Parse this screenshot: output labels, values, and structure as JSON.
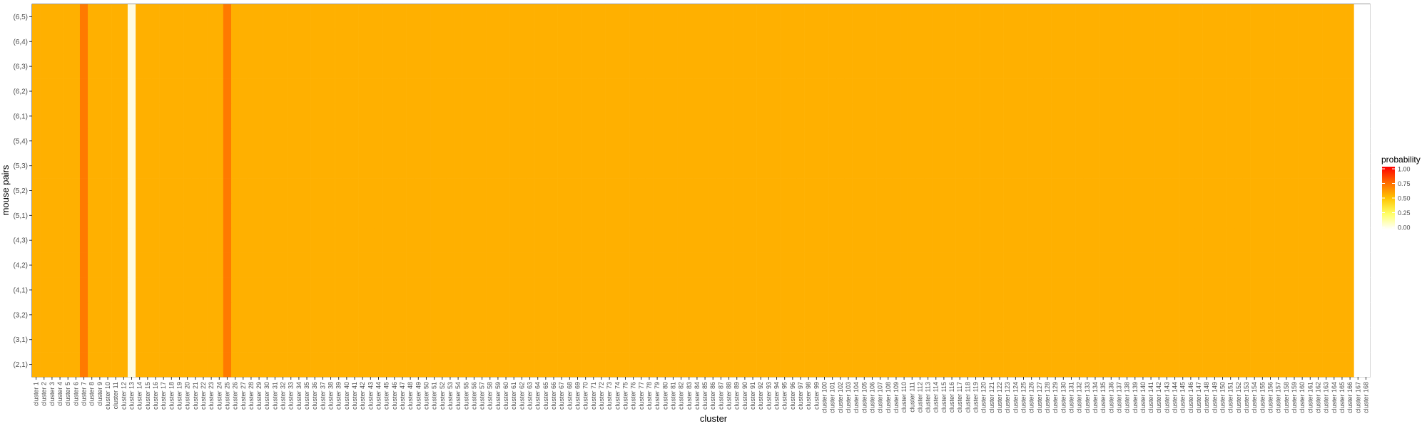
{
  "chart_data": {
    "type": "heatmap",
    "xlabel": "cluster",
    "ylabel": "mouse pairs",
    "y_categories": [
      "(2,1)",
      "(3,1)",
      "(3,2)",
      "(4,1)",
      "(4,2)",
      "(4,3)",
      "(5,1)",
      "(5,2)",
      "(5,3)",
      "(5,4)",
      "(6,1)",
      "(6,2)",
      "(6,3)",
      "(6,4)",
      "(6,5)"
    ],
    "x_categories": [
      "cluster 1",
      "cluster 2",
      "cluster 3",
      "cluster 4",
      "cluster 5",
      "cluster 6",
      "cluster 7",
      "cluster 8",
      "cluster 9",
      "cluster 10",
      "cluster 11",
      "cluster 12",
      "cluster 13",
      "cluster 14",
      "cluster 15",
      "cluster 16",
      "cluster 17",
      "cluster 18",
      "cluster 19",
      "cluster 20",
      "cluster 21",
      "cluster 22",
      "cluster 23",
      "cluster 24",
      "cluster 25",
      "cluster 26",
      "cluster 27",
      "cluster 28",
      "cluster 29",
      "cluster 30",
      "cluster 31",
      "cluster 32",
      "cluster 33",
      "cluster 34",
      "cluster 35",
      "cluster 36",
      "cluster 37",
      "cluster 38",
      "cluster 39",
      "cluster 40",
      "cluster 41",
      "cluster 42",
      "cluster 43",
      "cluster 44",
      "cluster 45",
      "cluster 46",
      "cluster 47",
      "cluster 48",
      "cluster 49",
      "cluster 50",
      "cluster 51",
      "cluster 52",
      "cluster 53",
      "cluster 54",
      "cluster 55",
      "cluster 56",
      "cluster 57",
      "cluster 58",
      "cluster 59",
      "cluster 60",
      "cluster 61",
      "cluster 62",
      "cluster 63",
      "cluster 64",
      "cluster 65",
      "cluster 66",
      "cluster 67",
      "cluster 68",
      "cluster 69",
      "cluster 70",
      "cluster 71",
      "cluster 72",
      "cluster 73",
      "cluster 74",
      "cluster 75",
      "cluster 76",
      "cluster 77",
      "cluster 78",
      "cluster 79",
      "cluster 80",
      "cluster 81",
      "cluster 82",
      "cluster 83",
      "cluster 84",
      "cluster 85",
      "cluster 86",
      "cluster 87",
      "cluster 88",
      "cluster 89",
      "cluster 90",
      "cluster 91",
      "cluster 92",
      "cluster 93",
      "cluster 94",
      "cluster 95",
      "cluster 96",
      "cluster 97",
      "cluster 98",
      "cluster 99",
      "cluster 100",
      "cluster 101",
      "cluster 102",
      "cluster 103",
      "cluster 104",
      "cluster 105",
      "cluster 106",
      "cluster 107",
      "cluster 108",
      "cluster 109",
      "cluster 110",
      "cluster 111",
      "cluster 112",
      "cluster 113",
      "cluster 114",
      "cluster 115",
      "cluster 116",
      "cluster 117",
      "cluster 118",
      "cluster 119",
      "cluster 120",
      "cluster 121",
      "cluster 122",
      "cluster 123",
      "cluster 124",
      "cluster 125",
      "cluster 126",
      "cluster 127",
      "cluster 128",
      "cluster 129",
      "cluster 130",
      "cluster 131",
      "cluster 132",
      "cluster 133",
      "cluster 134",
      "cluster 135",
      "cluster 136",
      "cluster 137",
      "cluster 138",
      "cluster 139",
      "cluster 140",
      "cluster 141",
      "cluster 142",
      "cluster 143",
      "cluster 144",
      "cluster 145",
      "cluster 146",
      "cluster 147",
      "cluster 148",
      "cluster 149",
      "cluster 150",
      "cluster 151",
      "cluster 152",
      "cluster 153",
      "cluster 154",
      "cluster 155",
      "cluster 156",
      "cluster 157",
      "cluster 158",
      "cluster 159",
      "cluster 160",
      "cluster 161",
      "cluster 162",
      "cluster 163",
      "cluster 164",
      "cluster 165",
      "cluster 166",
      "cluster 167",
      "cluster 168"
    ],
    "values_by_row": {
      "(6,5)": "4444445444441444444444445444444444444444444444444444444444444444444444444444444444444444444444444444444444444444444444444444444444444444444444444444444444444444444444",
      "(6,4)": "4444445444441444444444445444444444444444444444444444444444444444444444444444444444444444444444444444444444444444444444444444444444444444444444444444444444444444444444",
      "(6,3)": "4444445444441444444444445444444444444444444444444444444444444444444444444444444444444444444444444444444444444444444444444444444444444444444444444444444444444444444444",
      "(6,2)": "4444445444441444444444445444444444444444444444444444444444444444444444444444444444444444444444444444444444444444444444444444444444444444444444444444444444444444444444",
      "(6,1)": "4444445444441444444444445444444444444444444444444444444444444444444444444444444444444444444444444444444444444444444444444444444444444444444444444444444444444444444444",
      "(5,4)": "4444445444441444444444445444444444444444444444444444444444444444444444444444444444444444444444444444444444444444444444444444444444444444444444444444444444444444444444",
      "(5,3)": "4444445444441444444444445444444444444444444444444444444444444444444444444444444444444444444444444444444444444444444444444444444444444444444444444444444444444444444444",
      "(5,2)": "4444445444441444444444445444444444444444444444444444444444444444444444444444444444444444444444444444444444444444444444444444444444444444444444444444444444444444444444",
      "(5,1)": "4444445444441444444444445444444444444444444444444444444444444444444444444444444444444444444444444444444444444444444444444444444444444444444444444444444444444444444444",
      "(4,3)": "4444445444441444444444445444444444444444444444444444444444444444444444444444444444444444444444444444444444444444444444444444444444444444444444444444444444444444444444",
      "(4,2)": "4444445444441444444444445444444444444444444444444444444444444444444444444444444444444444444444444444444444444444444444444444444444444444444444444444444444444444444444",
      "(4,1)": "4444445444441444444444445444444444444444444444444444444444444444444444444444444444444444444444444444444444444444444444444444444444444444444444444444444444444444444444",
      "(3,2)": "4444445444441444444444445444444444444444444444444444444444444444444444444444444444444444444444444444444444444444444444444444444444444444444444444444444444444444444444",
      "(3,1)": "4444445444441444444444445444444444444444444444444444444444444444444444444444444444444444444444444444444444444444444444444444444444444444444444444444444444444444444444",
      "(2,1)": "4444445444441444444444445444444444444444444444444444444444444444444444444444444444444444444444444444444444444444444444444444444444444444444444444444444444444444444444"
    },
    "value_levels": [
      0,
      0.15,
      0.35,
      0.55,
      0.75,
      0.9,
      1.0
    ],
    "legend": {
      "title": "probability",
      "ticks": [
        "1.00",
        "0.75",
        "0.50",
        "0.25",
        "0.00"
      ],
      "placement": "right"
    },
    "colors": {
      "low": "#ffffff",
      "mid": "#ffff00",
      "orange": "#ffb300",
      "high": "#ff0000"
    },
    "grid": false
  }
}
